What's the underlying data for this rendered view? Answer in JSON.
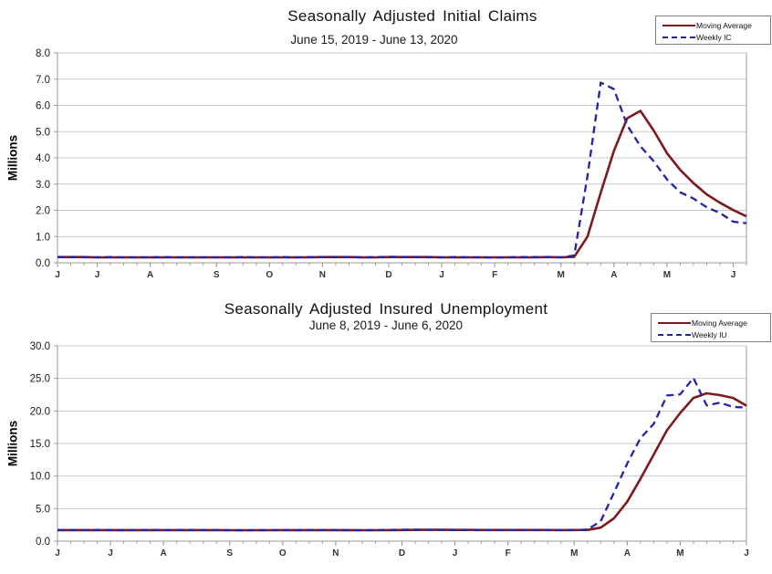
{
  "page": {
    "background": "#FFFFFF"
  },
  "colors": {
    "moving_average": "#7D1A1D",
    "weekly": "#2323A8",
    "gridline": "#C9C9C9",
    "axis": "#9A9A9A",
    "tick_text": "#1A1A1A",
    "x_label_text": "#333333"
  },
  "chart_data": [
    {
      "type": "line",
      "title": "Seasonally Adjusted Initial Claims",
      "subtitle": "June 15, 2019 - June 13, 2020",
      "ylabel": "Millions",
      "ylim": [
        0,
        8
      ],
      "ystep": 1,
      "y_tick_labels": [
        "0.0",
        "1.0",
        "2.0",
        "3.0",
        "4.0",
        "5.0",
        "6.0",
        "7.0",
        "8.0"
      ],
      "grid": "horizontal",
      "legend_position": "top-right",
      "x_labels": [
        "J",
        "J",
        "A",
        "S",
        "O",
        "N",
        "D",
        "J",
        "F",
        "M",
        "A",
        "M",
        "J"
      ],
      "x_label_weeks": [
        0,
        3,
        7,
        12,
        16,
        20,
        25,
        29,
        33,
        38,
        42,
        46,
        51
      ],
      "series": [
        {
          "name": "Moving Average",
          "color": "#7D1A1D",
          "style": "solid",
          "width": 2.6,
          "values": [
            0.22,
            0.22,
            0.22,
            0.21,
            0.21,
            0.21,
            0.21,
            0.21,
            0.21,
            0.21,
            0.21,
            0.21,
            0.21,
            0.21,
            0.21,
            0.21,
            0.21,
            0.21,
            0.21,
            0.21,
            0.22,
            0.22,
            0.22,
            0.21,
            0.21,
            0.22,
            0.22,
            0.22,
            0.22,
            0.21,
            0.21,
            0.21,
            0.21,
            0.21,
            0.21,
            0.21,
            0.21,
            0.22,
            0.21,
            0.23,
            1.0,
            2.67,
            4.27,
            5.51,
            5.79,
            5.04,
            4.18,
            3.54,
            3.04,
            2.61,
            2.29,
            2.01,
            1.77
          ]
        },
        {
          "name": "Weekly IC",
          "color": "#2323A8",
          "style": "dashed",
          "dash": "8 5",
          "width": 2.3,
          "values": [
            0.22,
            0.22,
            0.21,
            0.21,
            0.22,
            0.21,
            0.21,
            0.21,
            0.22,
            0.21,
            0.21,
            0.21,
            0.21,
            0.21,
            0.22,
            0.21,
            0.21,
            0.22,
            0.21,
            0.22,
            0.22,
            0.21,
            0.22,
            0.21,
            0.22,
            0.23,
            0.22,
            0.22,
            0.21,
            0.21,
            0.22,
            0.21,
            0.21,
            0.2,
            0.21,
            0.22,
            0.22,
            0.22,
            0.21,
            0.28,
            3.31,
            6.87,
            6.62,
            5.24,
            4.44,
            3.87,
            3.18,
            2.69,
            2.45,
            2.12,
            1.9,
            1.57,
            1.51
          ]
        }
      ]
    },
    {
      "type": "line",
      "title": "Seasonally Adjusted Insured Unemployment",
      "subtitle": "June 8, 2019 - June 6, 2020",
      "ylabel": "Millions",
      "ylim": [
        0,
        30
      ],
      "ystep": 5,
      "y_tick_labels": [
        "0.0",
        "5.0",
        "10.0",
        "15.0",
        "20.0",
        "25.0",
        "30.0"
      ],
      "grid": "horizontal",
      "legend_position": "top-right",
      "x_labels": [
        "J",
        "J",
        "A",
        "S",
        "O",
        "N",
        "D",
        "J",
        "F",
        "M",
        "A",
        "M",
        "J"
      ],
      "x_label_weeks": [
        0,
        4,
        8,
        13,
        17,
        21,
        26,
        30,
        34,
        39,
        43,
        47,
        52
      ],
      "series": [
        {
          "name": "Moving Average",
          "color": "#7D1A1D",
          "style": "solid",
          "width": 2.6,
          "values": [
            1.7,
            1.7,
            1.7,
            1.7,
            1.7,
            1.7,
            1.7,
            1.7,
            1.7,
            1.7,
            1.7,
            1.7,
            1.69,
            1.68,
            1.68,
            1.68,
            1.68,
            1.69,
            1.69,
            1.69,
            1.69,
            1.69,
            1.69,
            1.68,
            1.68,
            1.7,
            1.71,
            1.72,
            1.74,
            1.74,
            1.73,
            1.72,
            1.71,
            1.71,
            1.71,
            1.71,
            1.71,
            1.71,
            1.7,
            1.71,
            1.72,
            2.08,
            3.5,
            6.05,
            9.56,
            13.3,
            17.03,
            19.69,
            22.0,
            22.71,
            22.43,
            21.99,
            20.81
          ]
        },
        {
          "name": "Weekly IU",
          "color": "#2323A8",
          "style": "dashed",
          "dash": "8 5",
          "width": 2.3,
          "values": [
            1.7,
            1.69,
            1.7,
            1.72,
            1.7,
            1.68,
            1.7,
            1.71,
            1.69,
            1.7,
            1.72,
            1.7,
            1.69,
            1.68,
            1.66,
            1.68,
            1.69,
            1.7,
            1.68,
            1.69,
            1.7,
            1.69,
            1.68,
            1.67,
            1.7,
            1.72,
            1.75,
            1.76,
            1.74,
            1.72,
            1.7,
            1.72,
            1.7,
            1.71,
            1.73,
            1.7,
            1.72,
            1.7,
            1.7,
            1.7,
            1.78,
            3.06,
            7.45,
            11.91,
            15.82,
            18.01,
            22.38,
            22.55,
            25.07,
            20.84,
            21.27,
            20.61,
            20.54
          ]
        }
      ]
    }
  ]
}
